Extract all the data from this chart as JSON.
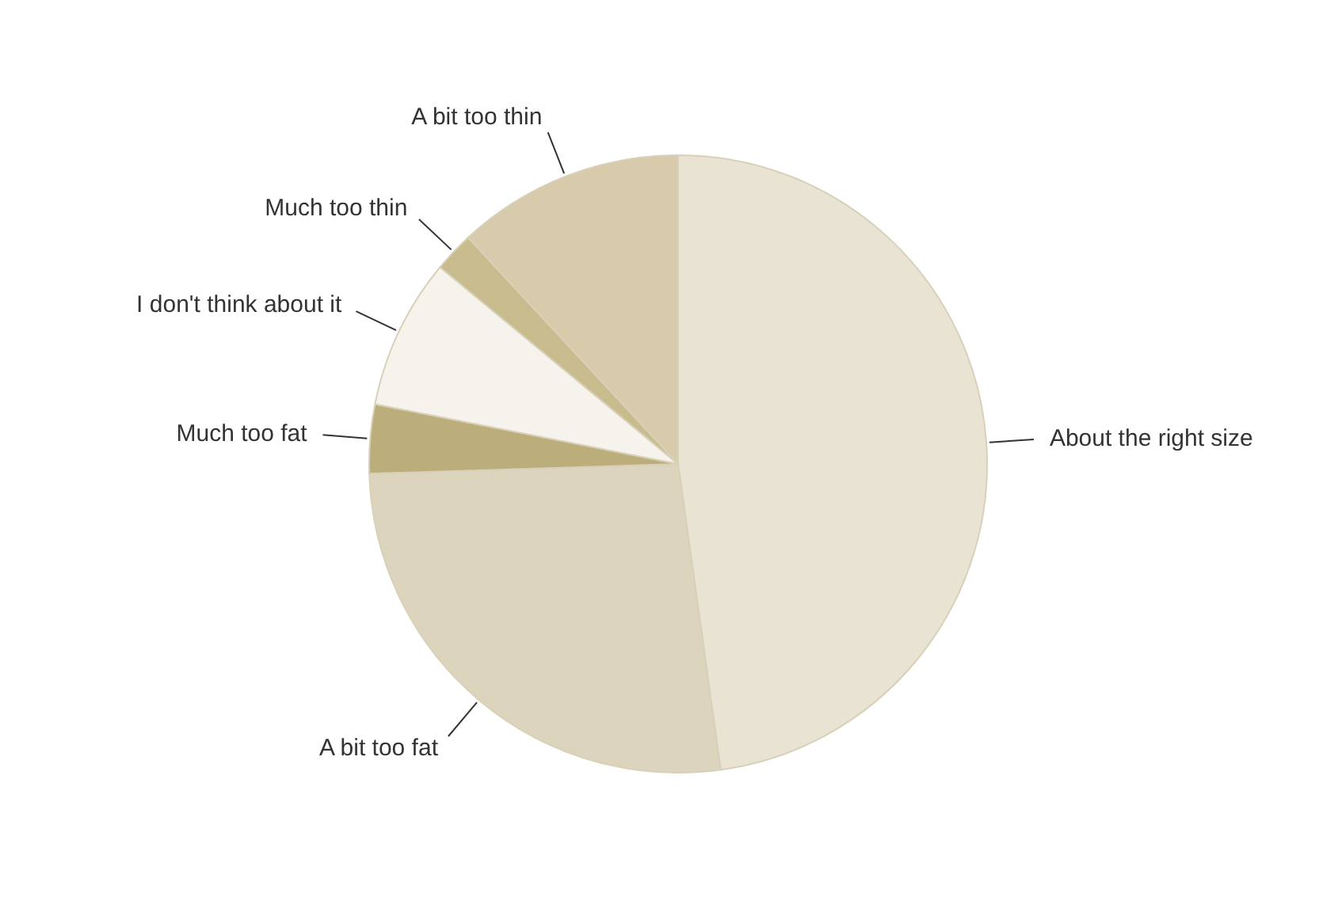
{
  "chart_data": {
    "type": "pie",
    "categories": [
      "About the right size",
      "A bit too fat",
      "Much too fat",
      "I don't think about it",
      "Much too thin",
      "A bit too thin"
    ],
    "values": [
      47.8,
      26.7,
      3.6,
      7.9,
      2.1,
      11.9
    ],
    "colors": [
      "#e9e3d4",
      "#dcd4bd",
      "#bbae7b",
      "#f5f3ec",
      "#c8bb8e",
      "#d7cbab"
    ],
    "legend": false
  }
}
